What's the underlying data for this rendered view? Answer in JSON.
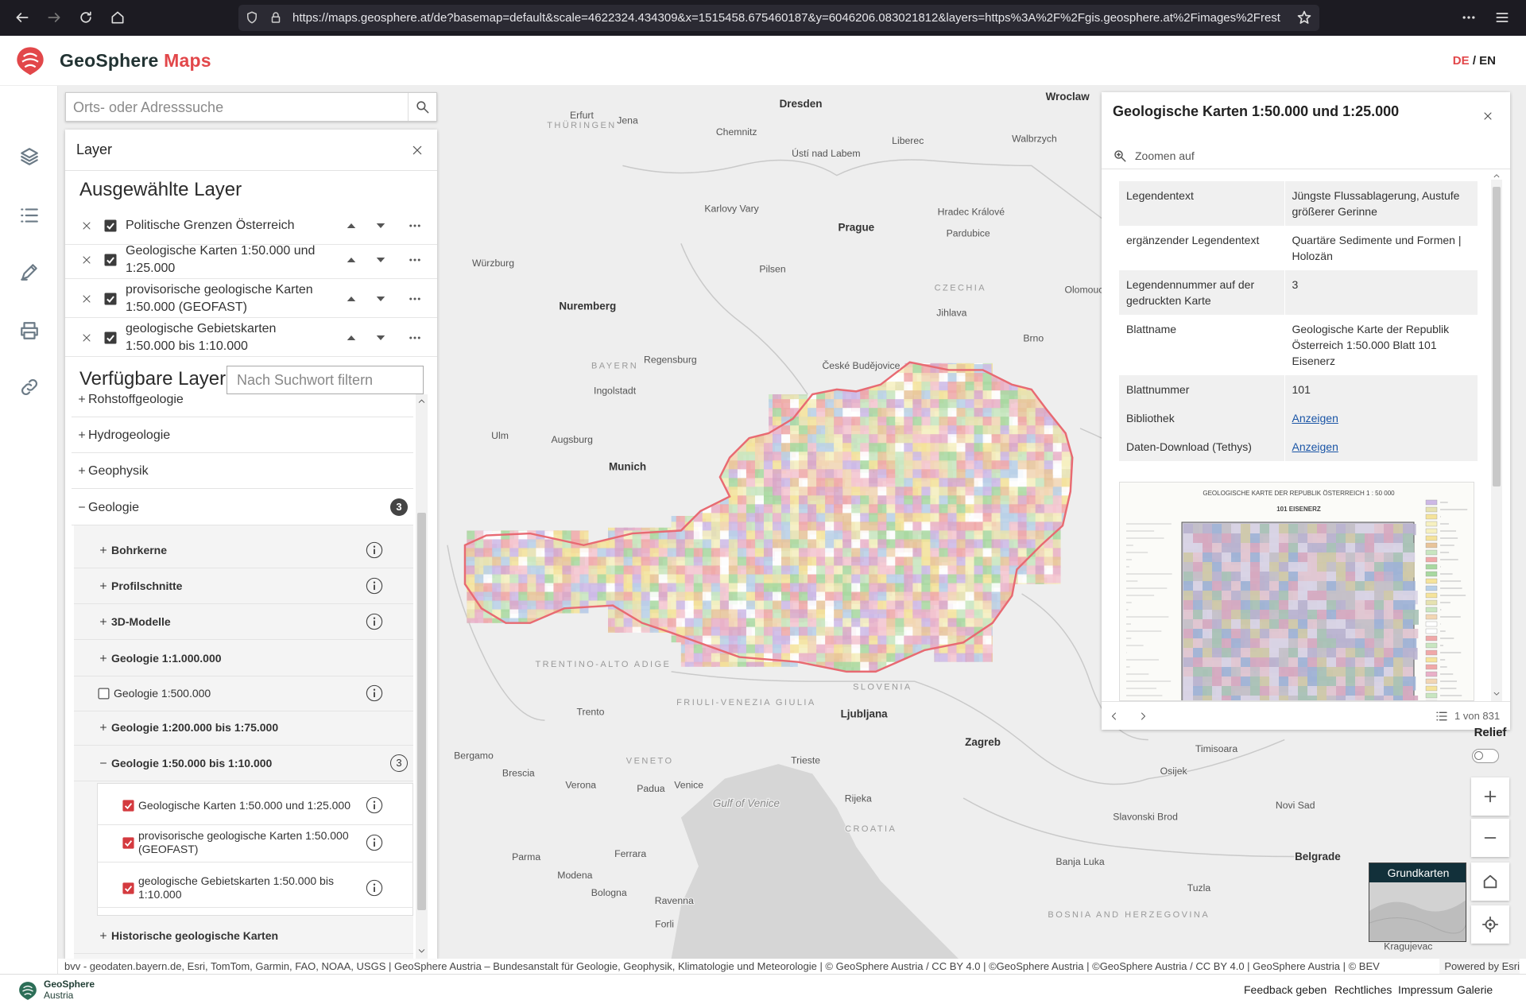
{
  "browser": {
    "url": "https://maps.geosphere.at/de?basemap=default&scale=4622324.434309&x=1515458.675460187&y=6046206.083021812&layers=https%3A%2F%2Fgis.geosphere.at%2Fimages%2Frest"
  },
  "header": {
    "brand": "GeoSphere",
    "brand_accent": "Maps",
    "lang": {
      "de": "DE",
      "sep": "/",
      "en": "EN"
    }
  },
  "search": {
    "placeholder": "Orts- oder Adresssuche"
  },
  "layer_panel": {
    "title": "Layer",
    "selected_title": "Ausgewählte Layer",
    "selected": [
      {
        "label": "Politische Grenzen Österreich",
        "checked": true
      },
      {
        "label": "Geologische Karten 1:50.000 und 1:25.000",
        "checked": true
      },
      {
        "label": "provisorische geologische Karten 1:50.000 (GEOFAST)",
        "checked": true
      },
      {
        "label": "geologische Gebietskarten 1:50.000 bis 1:10.000",
        "checked": true
      }
    ],
    "available_title": "Verfügbare Layer",
    "filter_placeholder": "Nach Suchwort filtern",
    "tree": [
      {
        "label": "Rohstoffgeologie",
        "level": 0,
        "expanded": false
      },
      {
        "label": "Hydrogeologie",
        "level": 0,
        "expanded": false
      },
      {
        "label": "Geophysik",
        "level": 0,
        "expanded": false
      },
      {
        "label": "Geologie",
        "level": 0,
        "expanded": true,
        "badge": 3
      },
      {
        "label": "Bohrkerne",
        "level": 1,
        "expanded": false,
        "info": true
      },
      {
        "label": "Profilschnitte",
        "level": 1,
        "expanded": false,
        "info": true
      },
      {
        "label": "3D-Modelle",
        "level": 1,
        "expanded": false,
        "info": true
      },
      {
        "label": "Geologie 1:1.000.000",
        "level": 1,
        "expanded": false
      },
      {
        "label": "Geologie 1:500.000",
        "level": 1,
        "checked": false,
        "info": true
      },
      {
        "label": "Geologie 1:200.000 bis 1:75.000",
        "level": 1,
        "expanded": false
      },
      {
        "label": "Geologie 1:50.000 bis 1:10.000",
        "level": 1,
        "expanded": true,
        "badge": 3
      },
      {
        "label": "Geologische Karten 1:50.000 und 1:25.000",
        "level": 2,
        "checked": true,
        "info": true
      },
      {
        "label": "provisorische geologische Karten 1:50.000 (GEOFAST)",
        "level": 2,
        "checked": true,
        "info": true
      },
      {
        "label": "geologische Gebietskarten 1:50.000 bis 1:10.000",
        "level": 2,
        "checked": true,
        "info": true
      },
      {
        "label": "Historische geologische Karten",
        "level": 1,
        "expanded": false
      }
    ]
  },
  "info_panel": {
    "title": "Geologische Karten 1:50.000 und 1:25.000",
    "zoom_label": "Zoomen auf",
    "rows": [
      {
        "label": "Legendentext",
        "value": "Jüngste Flussablagerung, Austufe größerer Gerinne"
      },
      {
        "label": "ergänzender Legendentext",
        "value": "Quartäre Sedimente und Formen | Holozän"
      },
      {
        "label": "Legendennummer auf der gedruckten Karte",
        "value": "3"
      },
      {
        "label": "Blattname",
        "value": "Geologische Karte der Republik Österreich 1:50.000 Blatt 101 Eisenerz"
      },
      {
        "label": "Blattnummer",
        "value": "101"
      },
      {
        "label": "Bibliothek",
        "value": "Anzeigen",
        "link": true
      },
      {
        "label": "Daten-Download (Tethys)",
        "value": "Anzeigen",
        "link": true
      }
    ],
    "thumbnail": {
      "title": "GEOLOGISCHE KARTE DER REPUBLIK ÖSTERREICH 1 : 50 000",
      "sheet": "101 EISENERZ"
    },
    "pager": "1 von 831"
  },
  "map": {
    "labels": [
      "Dresden",
      "Wroclaw",
      "Erfurt",
      "THÜRINGEN",
      "Jena",
      "Chemnitz",
      "Liberec",
      "Walbrzych",
      "Ústí nad Labem",
      "Karlovy Vary",
      "Hradec Králové",
      "Prague",
      "Pardubice",
      "Würzburg",
      "Pilsen",
      "CZECHIA",
      "Olomouc",
      "Jihlava",
      "Nuremberg",
      "Brno",
      "BAYERN",
      "Regensburg",
      "České Budějovice",
      "Ingolstadt",
      "Augsburg",
      "Ulm",
      "Munich",
      "TRENTINO-ALTO ADIGE",
      "FRIULI-VENEZIA GIULIA",
      "SLOVENIA",
      "Ljubljana",
      "Trento",
      "Zagreb",
      "Bergamo",
      "Brescia",
      "VENETO",
      "Trieste",
      "Verona",
      "Padua",
      "Venice",
      "Gulf of Venice",
      "Rijeka",
      "CROATIA",
      "Osijek",
      "Timisoara",
      "Novi Sad",
      "Slavonski Brod",
      "Parma",
      "Ferrara",
      "Modena",
      "Banja Luka",
      "Belgrade",
      "Tuzla",
      "Bologna",
      "Ravenna",
      "BOSNIA AND HERZEGOVINA",
      "Forli",
      "Kragujevac"
    ]
  },
  "map_controls": {
    "relief": "Relief",
    "relief_on": false,
    "basemap": "Grundkarten"
  },
  "attribution": {
    "text": "bvv - geodaten.bayern.de, Esri, TomTom, Garmin, FAO, NOAA, USGS | GeoSphere Austria – Bundesanstalt für Geologie, Geophysik, Klimatologie und Meteorologie | © GeoSphere Austria / CC BY 4.0 | ©GeoSphere Austria | ©GeoSphere Austria / CC BY 4.0 | GeoSphere Austria | © BEV",
    "powered": "Powered by Esri"
  },
  "footer": {
    "logo_line1": "GeoSphere",
    "logo_line2": "Austria",
    "links": [
      "Feedback geben",
      "Rechtliches",
      "Impressum",
      "Galerie"
    ]
  }
}
